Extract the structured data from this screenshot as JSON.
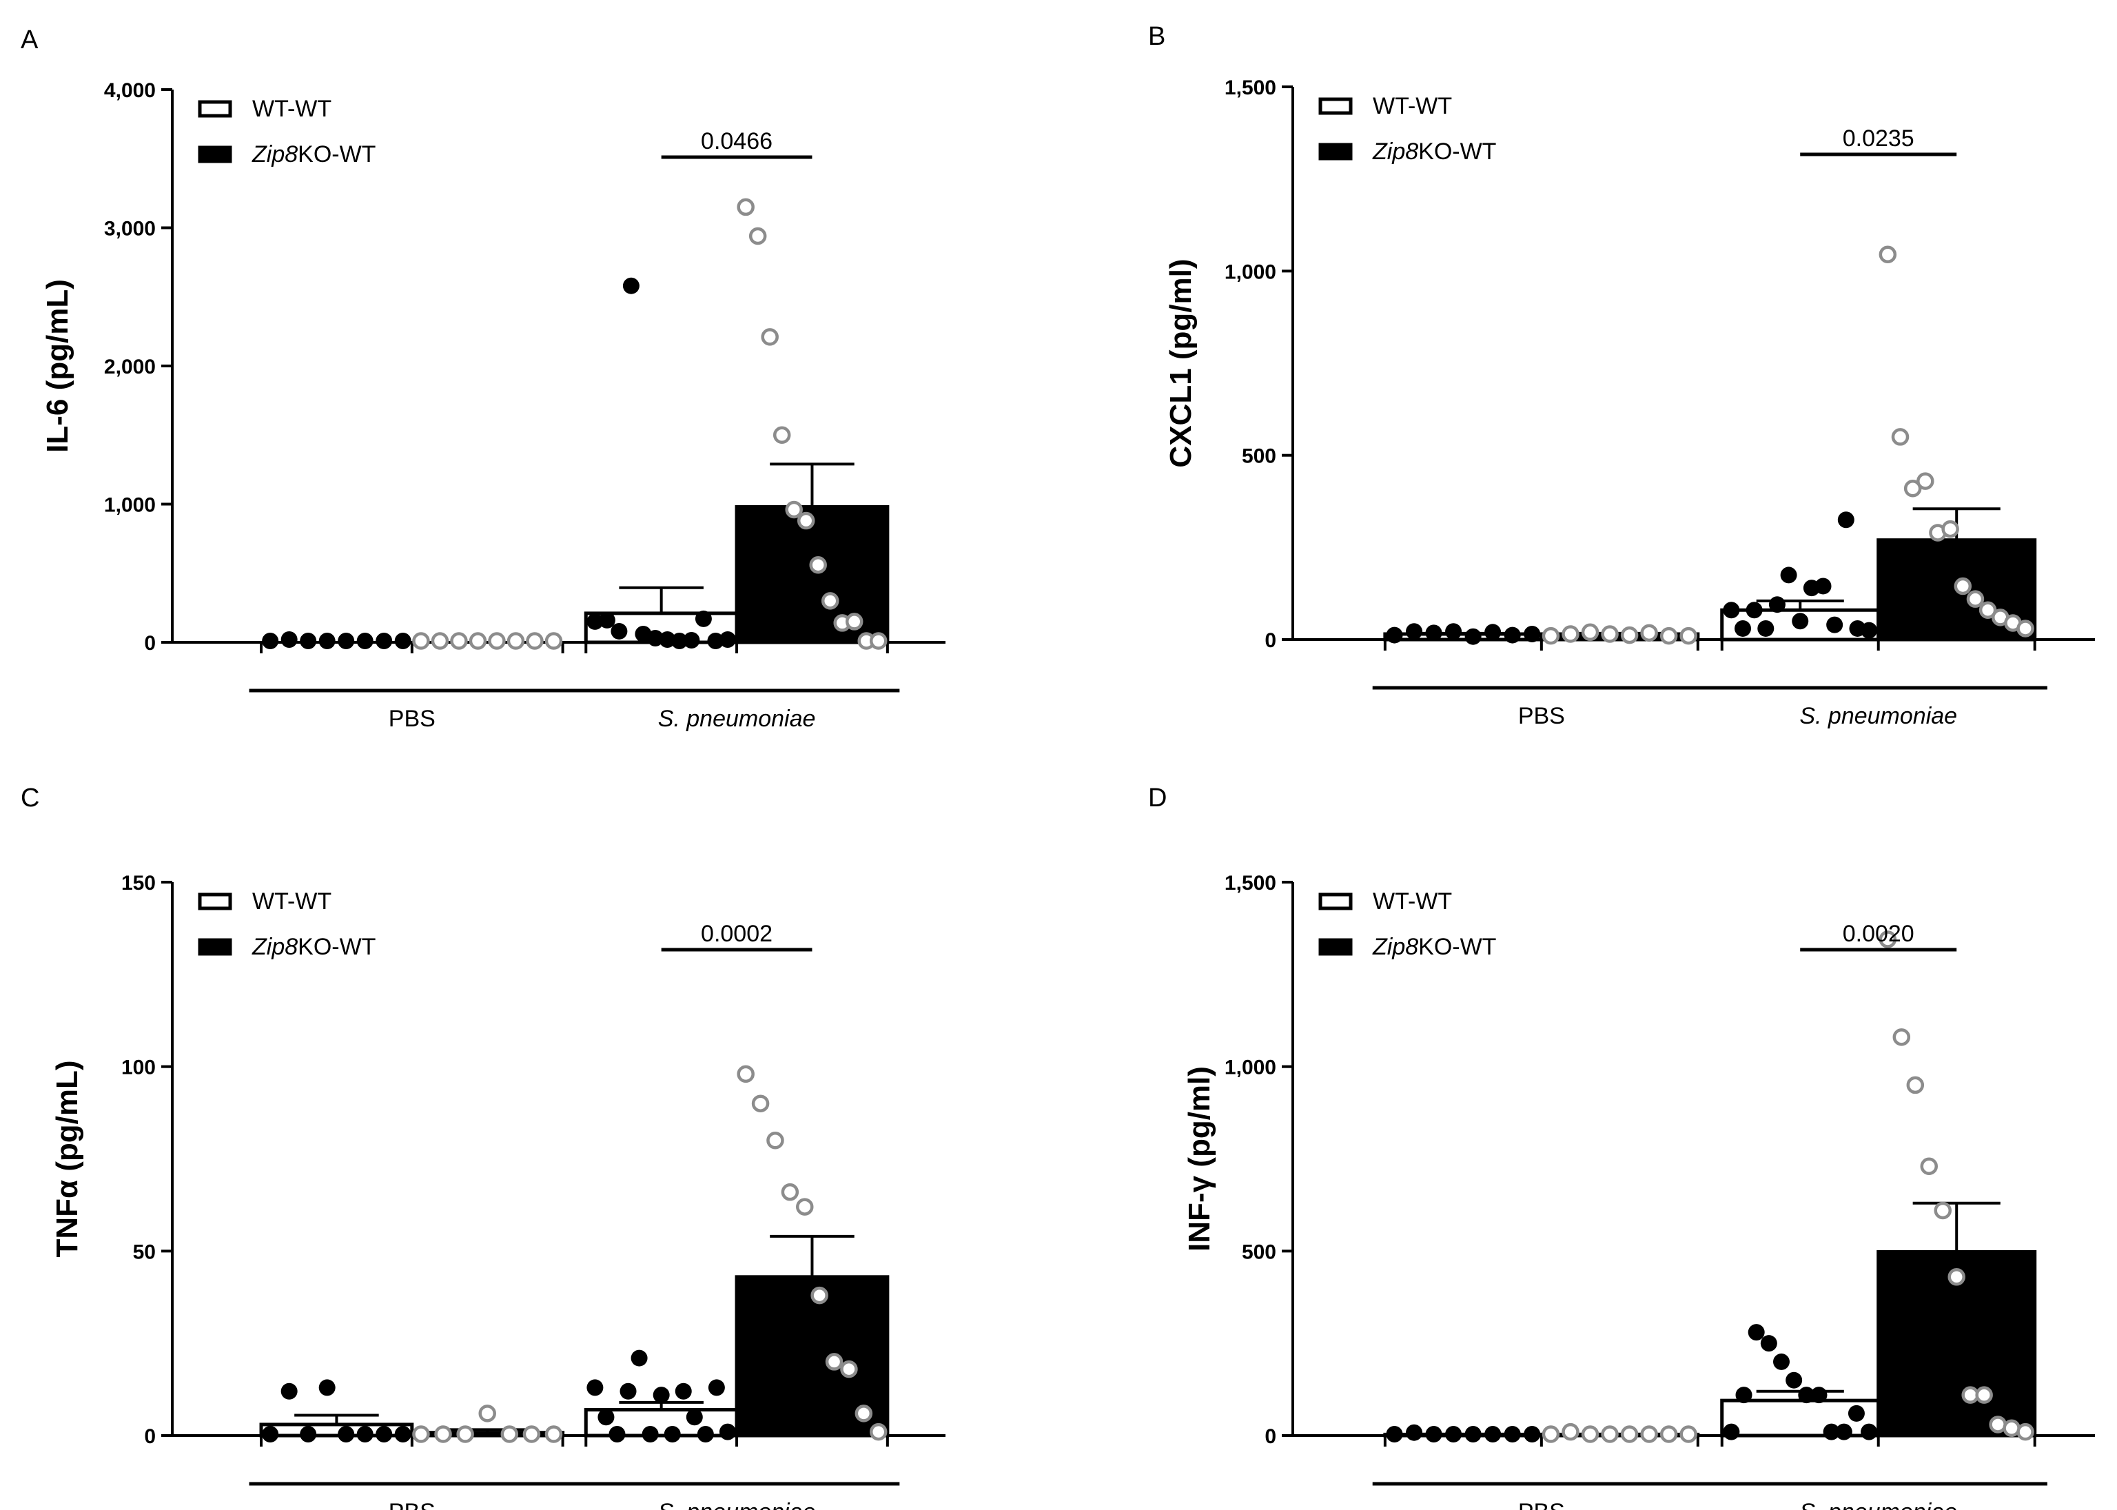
{
  "figure": {
    "legend": {
      "wt": "WT-WT",
      "ko_italic": "Zip8",
      "ko_rest": "KO-WT"
    },
    "groups": [
      "PBS",
      "S. pneumoniae"
    ],
    "colors": {
      "bar_fill_ko": "#000000",
      "bar_fill_wt": "#ffffff",
      "wt_dots": "#000000",
      "ko_dots": "#8c8c8c"
    }
  },
  "chart_data": [
    {
      "panel": "A",
      "type": "bar",
      "ylabel": "IL-6 (pg/mL)",
      "ylim": [
        0,
        4000
      ],
      "yticks": [
        0,
        1000,
        2000,
        3000,
        4000
      ],
      "ytick_labels": [
        "0",
        "1,000",
        "2,000",
        "3,000",
        "4,000"
      ],
      "categories": [
        "PBS",
        "S. pneumoniae"
      ],
      "series": [
        {
          "name": "WT-WT",
          "values": [
            0,
            210
          ],
          "sem": [
            0,
            185
          ],
          "points": [
            [
              0,
              20,
              5,
              8,
              3,
              2,
              4,
              1
            ],
            [
              150,
              160,
              80,
              2580,
              60,
              30,
              20,
              10,
              15,
              170,
              10,
              20
            ]
          ]
        },
        {
          "name": "Zip8KO-WT",
          "values": [
            0,
            980
          ],
          "sem": [
            0,
            310
          ],
          "points": [
            [
              5,
              5,
              5,
              5,
              5,
              5,
              5,
              5
            ],
            [
              3150,
              2940,
              2210,
              1500,
              960,
              880,
              560,
              300,
              140,
              150,
              10,
              5
            ]
          ]
        }
      ],
      "comparison": {
        "label": "0.0466",
        "group": "S. pneumoniae"
      }
    },
    {
      "panel": "B",
      "type": "bar",
      "ylabel": "CXCL1 (pg/ml)",
      "ylim": [
        0,
        1500
      ],
      "yticks": [
        0,
        500,
        1000,
        1500
      ],
      "ytick_labels": [
        "0",
        "500",
        "1,000",
        "1,500"
      ],
      "categories": [
        "PBS",
        "S. pneumoniae"
      ],
      "series": [
        {
          "name": "WT-WT",
          "values": [
            15,
            80
          ],
          "sem": [
            2,
            25
          ],
          "points": [
            [
              12,
              22,
              18,
              22,
              8,
              20,
              12,
              15
            ],
            [
              80,
              30,
              80,
              30,
              95,
              175,
              50,
              140,
              145,
              40,
              325,
              30,
              25
            ]
          ]
        },
        {
          "name": "Zip8KO-WT",
          "values": [
            15,
            270
          ],
          "sem": [
            2,
            85
          ],
          "points": [
            [
              10,
              15,
              20,
              15,
              12,
              18,
              10,
              10
            ],
            [
              1045,
              550,
              410,
              430,
              290,
              300,
              145,
              110,
              80,
              60,
              45,
              30
            ]
          ]
        }
      ],
      "comparison": {
        "label": "0.0235",
        "group": "S. pneumoniae"
      }
    },
    {
      "panel": "C",
      "type": "bar",
      "ylabel": "TNFα (pg/mL)",
      "ylim": [
        0,
        150
      ],
      "yticks": [
        0,
        50,
        100,
        150
      ],
      "ytick_labels": [
        "0",
        "50",
        "100",
        "150"
      ],
      "categories": [
        "PBS",
        "S. pneumoniae"
      ],
      "series": [
        {
          "name": "WT-WT",
          "values": [
            3,
            7
          ],
          "sem": [
            2.5,
            2
          ],
          "points": [
            [
              0,
              12,
              0,
              13,
              0,
              0,
              0,
              0
            ],
            [
              13,
              5,
              0,
              12,
              21,
              0,
              11,
              0,
              12,
              5,
              0,
              13,
              1
            ]
          ]
        },
        {
          "name": "Zip8KO-WT",
          "values": [
            0.8,
            43
          ],
          "sem": [
            0.8,
            11
          ],
          "points": [
            [
              0,
              0,
              0,
              6,
              0,
              0,
              0
            ],
            [
              98,
              90,
              80,
              66,
              62,
              38,
              20,
              18,
              6,
              1
            ]
          ]
        }
      ],
      "comparison": {
        "label": "0.0002",
        "group": "S. pneumoniae"
      }
    },
    {
      "panel": "D",
      "type": "bar",
      "ylabel": "INF-γ (pg/ml)",
      "ylim": [
        0,
        1500
      ],
      "yticks": [
        0,
        500,
        1000,
        1500
      ],
      "ytick_labels": [
        "0",
        "500",
        "1,000",
        "1,500"
      ],
      "categories": [
        "PBS",
        "S. pneumoniae"
      ],
      "series": [
        {
          "name": "WT-WT",
          "values": [
            3,
            95
          ],
          "sem": [
            1,
            25
          ],
          "points": [
            [
              3,
              8,
              3,
              3,
              3,
              3,
              3,
              3
            ],
            [
              10,
              110,
              280,
              250,
              200,
              150,
              110,
              110,
              10,
              10,
              60,
              10
            ]
          ]
        },
        {
          "name": "Zip8KO-WT",
          "values": [
            3,
            498
          ],
          "sem": [
            1,
            132
          ],
          "points": [
            [
              3,
              10,
              3,
              3,
              3,
              3,
              3,
              3
            ],
            [
              1345,
              1080,
              950,
              730,
              610,
              430,
              110,
              110,
              30,
              20,
              10
            ]
          ]
        }
      ],
      "comparison": {
        "label": "0.0020",
        "group": "S. pneumoniae"
      }
    }
  ]
}
